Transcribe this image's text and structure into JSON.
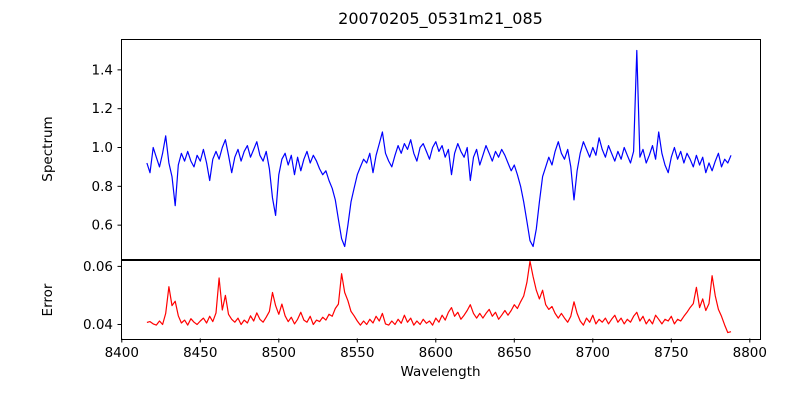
{
  "title": "20070205_0531m21_085",
  "colors": {
    "spectrum_line": "#0000ff",
    "error_line": "#ff0000",
    "axes": "#000000",
    "background": "#ffffff"
  },
  "chart_data": {
    "type": "line",
    "title": "20070205_0531m21_085",
    "x_label": "Wavelength",
    "xlim": [
      8399.5,
      8806.5
    ],
    "xticks": [
      8400,
      8450,
      8500,
      8550,
      8600,
      8650,
      8700,
      8750,
      8800
    ],
    "xtick_labels": [
      "8400",
      "8450",
      "8500",
      "8550",
      "8600",
      "8650",
      "8700",
      "8750",
      "8800"
    ],
    "x": [
      8416,
      8418,
      8420,
      8422,
      8424,
      8426,
      8428,
      8430,
      8432,
      8434,
      8436,
      8438,
      8440,
      8442,
      8444,
      8446,
      8448,
      8450,
      8452,
      8454,
      8456,
      8458,
      8460,
      8462,
      8464,
      8466,
      8468,
      8470,
      8472,
      8474,
      8476,
      8478,
      8480,
      8482,
      8484,
      8486,
      8488,
      8490,
      8492,
      8494,
      8496,
      8498,
      8500,
      8502,
      8504,
      8506,
      8508,
      8510,
      8512,
      8514,
      8516,
      8518,
      8520,
      8522,
      8524,
      8526,
      8528,
      8530,
      8532,
      8534,
      8536,
      8538,
      8540,
      8542,
      8544,
      8546,
      8548,
      8550,
      8552,
      8554,
      8556,
      8558,
      8560,
      8562,
      8564,
      8566,
      8568,
      8570,
      8572,
      8574,
      8576,
      8578,
      8580,
      8582,
      8584,
      8586,
      8588,
      8590,
      8592,
      8594,
      8596,
      8598,
      8600,
      8602,
      8604,
      8606,
      8608,
      8610,
      8612,
      8614,
      8616,
      8618,
      8620,
      8622,
      8624,
      8626,
      8628,
      8630,
      8632,
      8634,
      8636,
      8638,
      8640,
      8642,
      8644,
      8646,
      8648,
      8650,
      8652,
      8654,
      8656,
      8658,
      8660,
      8662,
      8664,
      8666,
      8668,
      8670,
      8672,
      8674,
      8676,
      8678,
      8680,
      8682,
      8684,
      8686,
      8688,
      8690,
      8692,
      8694,
      8696,
      8698,
      8700,
      8702,
      8704,
      8706,
      8708,
      8710,
      8712,
      8714,
      8716,
      8718,
      8720,
      8722,
      8724,
      8726,
      8728,
      8730,
      8732,
      8734,
      8736,
      8738,
      8740,
      8742,
      8744,
      8746,
      8748,
      8750,
      8752,
      8754,
      8756,
      8758,
      8760,
      8762,
      8764,
      8766,
      8768,
      8770,
      8772,
      8774,
      8776,
      8778,
      8780,
      8782,
      8784,
      8786,
      8788
    ],
    "subplots": [
      {
        "name": "spectrum",
        "ylabel": "Spectrum",
        "color": "#0000ff",
        "ylim": [
          0.4256,
          1.559
        ],
        "yticks": [
          "0.6",
          "0.8",
          "1.0",
          "1.2",
          "1.4"
        ],
        "features": "Ca II triplet absorption at 8498, 8542, 8662; weaker dips 8434, 8688; narrow emission spike to 1.50 at 8728",
        "values": [
          0.92,
          0.87,
          1.0,
          0.95,
          0.9,
          0.97,
          1.06,
          0.92,
          0.85,
          0.7,
          0.91,
          0.97,
          0.93,
          0.98,
          0.93,
          0.9,
          0.96,
          0.93,
          0.99,
          0.92,
          0.83,
          0.94,
          0.98,
          0.94,
          1.0,
          1.04,
          0.96,
          0.87,
          0.95,
          0.99,
          0.93,
          0.98,
          1.01,
          0.95,
          0.99,
          1.03,
          0.96,
          0.93,
          0.98,
          0.89,
          0.74,
          0.65,
          0.86,
          0.94,
          0.97,
          0.91,
          0.96,
          0.86,
          0.95,
          0.88,
          0.94,
          0.98,
          0.92,
          0.96,
          0.93,
          0.89,
          0.86,
          0.88,
          0.83,
          0.79,
          0.73,
          0.63,
          0.53,
          0.49,
          0.6,
          0.72,
          0.79,
          0.86,
          0.9,
          0.94,
          0.92,
          0.97,
          0.87,
          0.96,
          1.02,
          1.08,
          0.97,
          0.93,
          0.9,
          0.96,
          1.01,
          0.97,
          1.02,
          0.99,
          1.04,
          0.97,
          0.93,
          1.0,
          1.02,
          0.98,
          0.94,
          1.0,
          1.03,
          0.98,
          1.01,
          0.95,
          0.99,
          0.86,
          0.97,
          1.02,
          0.98,
          0.95,
          1.0,
          0.83,
          0.95,
          0.99,
          0.91,
          0.96,
          1.01,
          0.97,
          0.93,
          0.98,
          0.95,
          0.99,
          0.96,
          0.92,
          0.88,
          0.91,
          0.86,
          0.8,
          0.72,
          0.62,
          0.52,
          0.49,
          0.58,
          0.72,
          0.85,
          0.9,
          0.95,
          0.91,
          0.98,
          1.03,
          0.97,
          0.94,
          0.99,
          0.9,
          0.73,
          0.88,
          0.97,
          1.03,
          0.99,
          0.95,
          1.0,
          0.96,
          1.05,
          0.99,
          0.95,
          1.01,
          0.97,
          0.93,
          0.98,
          0.94,
          1.0,
          0.96,
          0.92,
          0.98,
          1.5,
          0.95,
          0.99,
          0.92,
          0.96,
          1.01,
          0.94,
          1.08,
          0.97,
          0.91,
          0.87,
          0.95,
          1.0,
          0.94,
          0.98,
          0.92,
          0.97,
          0.94,
          0.9,
          0.96,
          0.91,
          0.95,
          0.87,
          0.92,
          0.88,
          0.93,
          0.97,
          0.9,
          0.94,
          0.92,
          0.96
        ]
      },
      {
        "name": "error",
        "ylabel": "Error",
        "color": "#ff0000",
        "ylim": [
          0.035,
          0.0622
        ],
        "yticks": [
          "0.04",
          "0.06"
        ],
        "features": "baseline ~0.040-0.044 with peaks at absorption lines: 8430, 8462, 8496, 8540 (0.058), 8660 (0.062 max), 8688, 8766, 8776; falls to 0.037 at red end",
        "values": [
          0.0407,
          0.041,
          0.0402,
          0.0398,
          0.0412,
          0.04,
          0.0438,
          0.053,
          0.0465,
          0.048,
          0.043,
          0.0405,
          0.0415,
          0.0398,
          0.042,
          0.0408,
          0.04,
          0.0412,
          0.0422,
          0.0405,
          0.0428,
          0.041,
          0.044,
          0.056,
          0.045,
          0.05,
          0.0435,
          0.0418,
          0.0408,
          0.0422,
          0.04,
          0.0415,
          0.0405,
          0.043,
          0.0412,
          0.044,
          0.0418,
          0.0408,
          0.0425,
          0.0445,
          0.051,
          0.0465,
          0.0435,
          0.047,
          0.043,
          0.041,
          0.0425,
          0.0402,
          0.0418,
          0.0442,
          0.0415,
          0.0408,
          0.0428,
          0.04,
          0.0415,
          0.041,
          0.0425,
          0.0415,
          0.0435,
          0.0428,
          0.0455,
          0.047,
          0.0575,
          0.051,
          0.0482,
          0.0445,
          0.043,
          0.0412,
          0.0398,
          0.0412,
          0.04,
          0.0418,
          0.0405,
          0.0428,
          0.0412,
          0.0438,
          0.0402,
          0.0398,
          0.0412,
          0.04,
          0.0418,
          0.0404,
          0.0432,
          0.0408,
          0.0422,
          0.0398,
          0.0412,
          0.04,
          0.0418,
          0.0404,
          0.0412,
          0.0398,
          0.0422,
          0.0408,
          0.0432,
          0.0415,
          0.0442,
          0.0458,
          0.0428,
          0.0442,
          0.0418,
          0.0432,
          0.0448,
          0.0468,
          0.0438,
          0.0422,
          0.0438,
          0.0422,
          0.0438,
          0.0452,
          0.0428,
          0.0442,
          0.0418,
          0.0432,
          0.0448,
          0.0432,
          0.0448,
          0.0468,
          0.0455,
          0.0478,
          0.0498,
          0.0545,
          0.0618,
          0.0565,
          0.0518,
          0.0488,
          0.0518,
          0.0468,
          0.0452,
          0.0462,
          0.0438,
          0.0422,
          0.0438,
          0.0422,
          0.0408,
          0.0428,
          0.0478,
          0.0438,
          0.0412,
          0.0398,
          0.0422,
          0.0408,
          0.0432,
          0.0402,
          0.0418,
          0.0408,
          0.0422,
          0.0402,
          0.0418,
          0.0432,
          0.0408,
          0.0422,
          0.0402,
          0.0418,
          0.0408,
          0.0428,
          0.0442,
          0.0412,
          0.0428,
          0.0402,
          0.0418,
          0.0402,
          0.0432,
          0.0418,
          0.0402,
          0.0418,
          0.0412,
          0.0428,
          0.0402,
          0.0418,
          0.0412,
          0.0428,
          0.0442,
          0.0458,
          0.0472,
          0.0528,
          0.0458,
          0.0488,
          0.0448,
          0.0472,
          0.0568,
          0.0498,
          0.0452,
          0.0428,
          0.0398,
          0.0372,
          0.0375
        ]
      }
    ]
  }
}
